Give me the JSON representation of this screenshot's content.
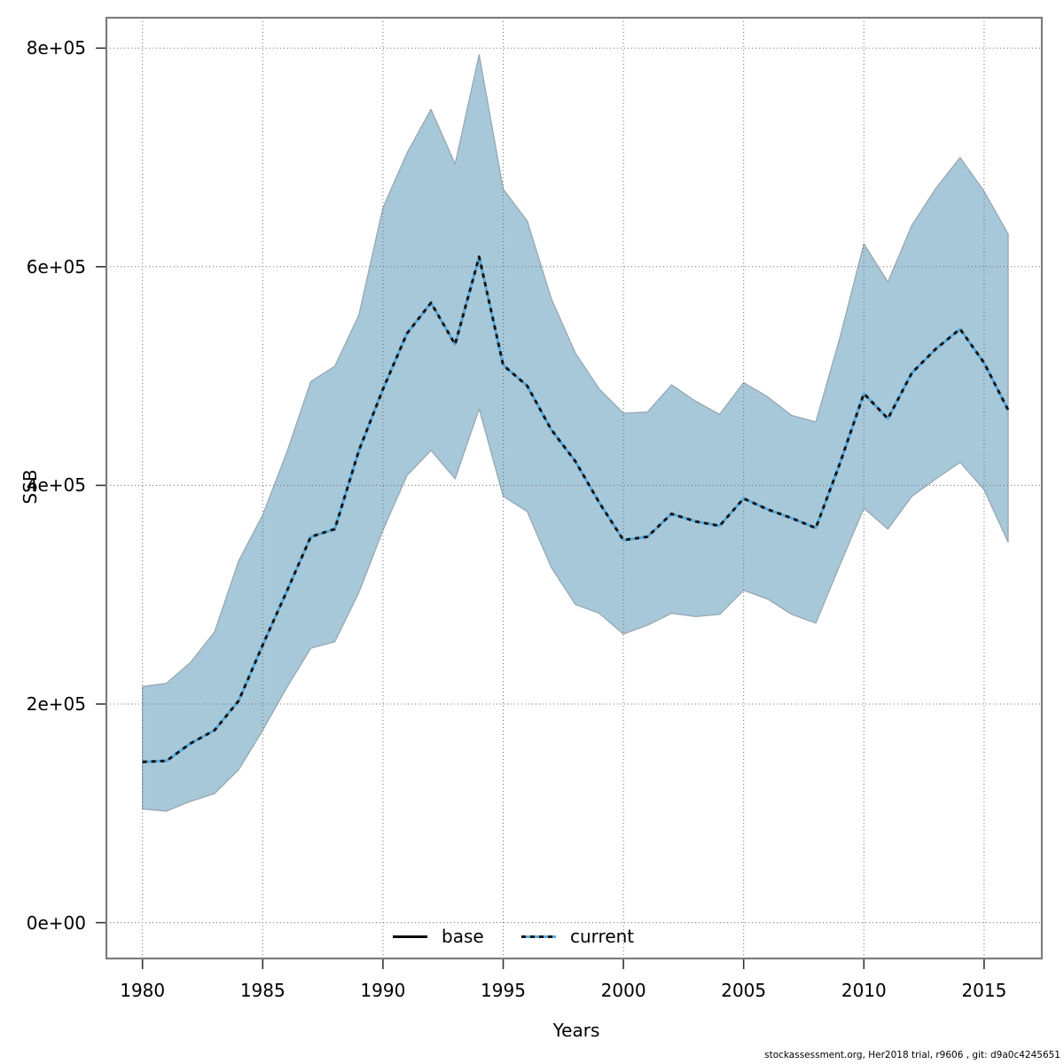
{
  "figure": {
    "y_axis": {
      "label": "SSB",
      "ticks": [
        {
          "label": "0e+00",
          "value": 0
        },
        {
          "label": "2e+05",
          "value": 200000
        },
        {
          "label": "4e+05",
          "value": 400000
        },
        {
          "label": "6e+05",
          "value": 600000
        },
        {
          "label": "8e+05",
          "value": 800000
        }
      ]
    },
    "x_axis": {
      "label": "Years",
      "ticks": [
        {
          "label": "1980",
          "value": 1980
        },
        {
          "label": "1985",
          "value": 1985
        },
        {
          "label": "1990",
          "value": 1990
        },
        {
          "label": "1995",
          "value": 1995
        },
        {
          "label": "2000",
          "value": 2000
        },
        {
          "label": "2005",
          "value": 2005
        },
        {
          "label": "2010",
          "value": 2010
        },
        {
          "label": "2015",
          "value": 2015
        }
      ]
    },
    "legend": [
      {
        "label": "base",
        "style": "solid-black"
      },
      {
        "label": "current",
        "style": "dotted-blue"
      }
    ],
    "footer": "stockassessment.org, Her2018 trial, r9606 , git: d9a0c4245651",
    "colors": {
      "ribbon_fill": "#a7c8d9",
      "ribbon_border": "#97a7b2",
      "current_line_underlay": "#58acdf",
      "current_line_dash": "#161616",
      "base_line": "#000000",
      "gridline": "#6b6b6b",
      "panel_border": "#7d7d7d",
      "tick": "#333333",
      "text": "#000000"
    }
  },
  "chart_data": {
    "type": "line",
    "title": "",
    "xlabel": "Years",
    "ylabel": "SSB",
    "xlim": [
      1978.5,
      2017.4
    ],
    "ylim": [
      -32800,
      827800
    ],
    "grid": true,
    "legend_position": "bottom-center",
    "x": [
      1980,
      1981,
      1982,
      1983,
      1984,
      1985,
      1986,
      1987,
      1988,
      1989,
      1990,
      1991,
      1992,
      1993,
      1994,
      1995,
      1996,
      1997,
      1998,
      1999,
      2000,
      2001,
      2002,
      2003,
      2004,
      2005,
      2006,
      2007,
      2008,
      2009,
      2010,
      2011,
      2012,
      2013,
      2014,
      2015,
      2016
    ],
    "series": [
      {
        "name": "current",
        "values": [
          147000,
          148000,
          164000,
          176000,
          203000,
          254000,
          303000,
          353000,
          360000,
          432000,
          488000,
          539000,
          567000,
          529000,
          609000,
          510000,
          491000,
          451000,
          422000,
          384000,
          350000,
          353000,
          374000,
          367000,
          363000,
          388000,
          378000,
          370000,
          361000,
          420000,
          484000,
          461000,
          503000,
          525000,
          543000,
          512000,
          469000
        ]
      },
      {
        "name": "current_lower_ci",
        "values": [
          104000,
          102000,
          111000,
          118000,
          140000,
          176000,
          215000,
          251000,
          257000,
          302000,
          359000,
          409000,
          432000,
          406000,
          470000,
          390000,
          376000,
          325000,
          291000,
          283000,
          264000,
          272000,
          283000,
          280000,
          282000,
          304000,
          296000,
          282000,
          274000,
          327000,
          379000,
          360000,
          390000,
          406000,
          421000,
          396000,
          348000
        ]
      },
      {
        "name": "current_upper_ci",
        "values": [
          216000,
          219000,
          238000,
          266000,
          331000,
          373000,
          430000,
          495000,
          509000,
          556000,
          654000,
          704000,
          744000,
          694000,
          794000,
          671000,
          642000,
          571000,
          521000,
          488000,
          466000,
          467000,
          492000,
          477000,
          465000,
          494000,
          481000,
          464000,
          458000,
          535000,
          621000,
          586000,
          638000,
          672000,
          700000,
          669000,
          630000
        ]
      }
    ],
    "band": {
      "lower": "current_lower_ci",
      "upper": "current_upper_ci",
      "center": "current"
    }
  }
}
